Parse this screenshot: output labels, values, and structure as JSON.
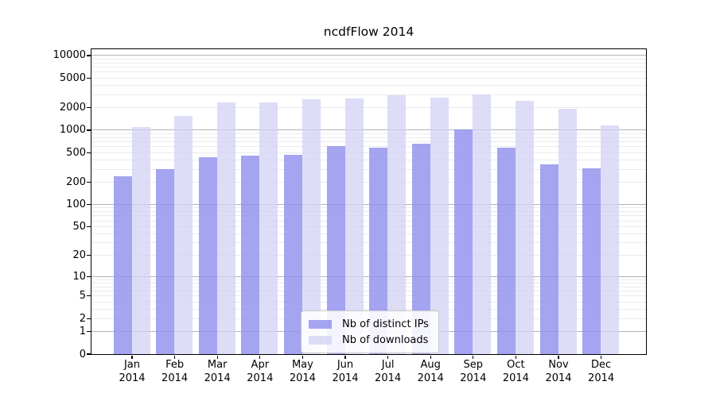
{
  "chart_data": {
    "type": "bar",
    "title": "ncdfFlow 2014",
    "xlabel": "",
    "ylabel": "",
    "y_scale": "log1p",
    "grid": true,
    "legend_position": "bottom-center-inside",
    "year_label": "2014",
    "categories": [
      "Jan",
      "Feb",
      "Mar",
      "Apr",
      "May",
      "Jun",
      "Jul",
      "Aug",
      "Sep",
      "Oct",
      "Nov",
      "Dec"
    ],
    "x_tick_line2": [
      "2014",
      "2014",
      "2014",
      "2014",
      "2014",
      "2014",
      "2014",
      "2014",
      "2014",
      "2014",
      "2014",
      "2014"
    ],
    "y_ticks": [
      0,
      1,
      2,
      5,
      10,
      20,
      50,
      100,
      200,
      500,
      1000,
      2000,
      5000,
      10000
    ],
    "y_major_gridlines": [
      1,
      10,
      100,
      1000,
      10000
    ],
    "ylim": [
      0,
      12000
    ],
    "series": [
      {
        "name": "Nb of distinct IPs",
        "color": "#9090ee",
        "opacity": 0.82,
        "values": [
          240,
          300,
          430,
          450,
          460,
          600,
          575,
          650,
          1020,
          570,
          340,
          305
        ]
      },
      {
        "name": "Nb of downloads",
        "color": "#d2d2f6",
        "opacity": 0.75,
        "values": [
          1080,
          1520,
          2340,
          2300,
          2560,
          2640,
          2870,
          2710,
          3010,
          2450,
          1920,
          1150
        ]
      }
    ],
    "colors": {
      "major_grid": "#b3b3b3",
      "minor_grid": "#ebebeb",
      "axis": "#000000",
      "background": "#ffffff"
    }
  }
}
